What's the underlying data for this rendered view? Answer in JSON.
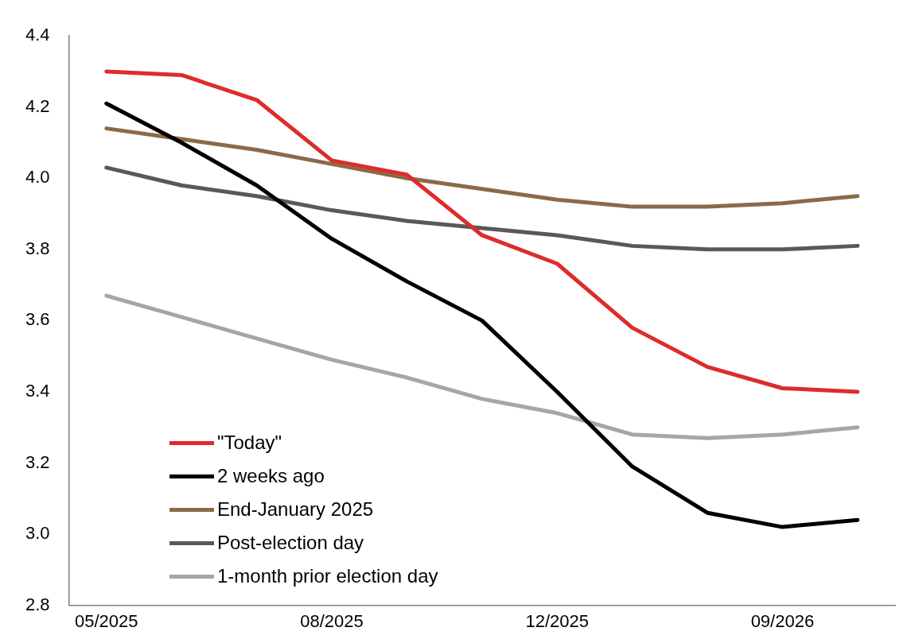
{
  "chart_data": {
    "type": "line",
    "categories": [
      "05/2025",
      null,
      null,
      "08/2025",
      null,
      null,
      "12/2025",
      null,
      null,
      "09/2026",
      null
    ],
    "series": [
      {
        "name": "\"Today\"",
        "color": "#dd2c2c",
        "values": [
          4.3,
          4.29,
          4.22,
          4.05,
          4.01,
          3.84,
          3.76,
          3.58,
          3.47,
          3.41,
          3.4
        ]
      },
      {
        "name": "2 weeks ago",
        "color": "#000000",
        "values": [
          4.21,
          4.1,
          3.98,
          3.83,
          3.71,
          3.6,
          3.4,
          3.19,
          3.06,
          3.02,
          3.04
        ]
      },
      {
        "name": "End-January 2025",
        "color": "#8c6a48",
        "values": [
          4.14,
          4.11,
          4.08,
          4.04,
          4.0,
          3.97,
          3.94,
          3.92,
          3.92,
          3.93,
          3.95
        ]
      },
      {
        "name": "Post-election day",
        "color": "#595959",
        "values": [
          4.03,
          3.98,
          3.95,
          3.91,
          3.88,
          3.86,
          3.84,
          3.81,
          3.8,
          3.8,
          3.81
        ]
      },
      {
        "name": "1-month prior election day",
        "color": "#a6a6a6",
        "values": [
          3.67,
          3.61,
          3.55,
          3.49,
          3.44,
          3.38,
          3.34,
          3.28,
          3.27,
          3.28,
          3.3
        ]
      }
    ],
    "ylim": [
      2.8,
      4.4
    ],
    "yticks": [
      {
        "value": 2.8,
        "label": "2.8"
      },
      {
        "value": 3.0,
        "label": "3.0"
      },
      {
        "value": 3.2,
        "label": "3.2"
      },
      {
        "value": 3.4,
        "label": "3.4"
      },
      {
        "value": 3.6,
        "label": "3.6"
      },
      {
        "value": 3.8,
        "label": "3.8"
      },
      {
        "value": 4.0,
        "label": "4.0"
      },
      {
        "value": 4.2,
        "label": "4.2"
      },
      {
        "value": 4.4,
        "label": "4.4"
      }
    ],
    "grid": false,
    "legend": "bottom left",
    "marker": "none",
    "line_style": "solid"
  }
}
